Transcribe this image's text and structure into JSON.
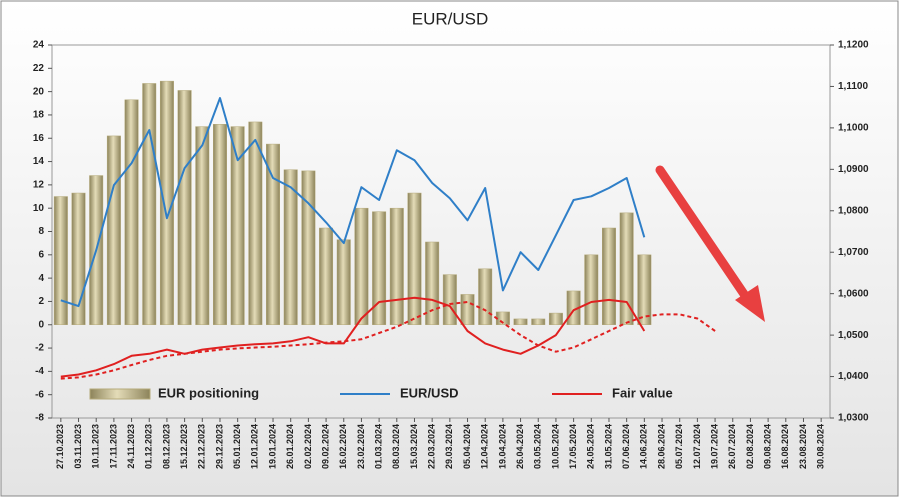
{
  "chart_data": {
    "type": "bar-line",
    "title": "EUR/USD",
    "categories": [
      "27.10.2023",
      "03.11.2023",
      "10.11.2023",
      "17.11.2023",
      "24.11.2023",
      "01.12.2023",
      "08.12.2023",
      "15.12.2023",
      "22.12.2023",
      "29.12.2023",
      "05.01.2024",
      "12.01.2024",
      "19.01.2024",
      "26.01.2024",
      "02.02.2024",
      "09.02.2024",
      "16.02.2024",
      "23.02.2024",
      "01.03.2024",
      "08.03.2024",
      "15.03.2024",
      "22.03.2024",
      "29.03.2024",
      "05.04.2024",
      "12.04.2024",
      "19.04.2024",
      "26.04.2024",
      "03.05.2024",
      "10.05.2024",
      "17.05.2024",
      "24.05.2024",
      "31.05.2024",
      "07.06.2024",
      "14.06.2024",
      "28.06.2024",
      "05.07.2024",
      "12.07.2024",
      "19.07.2024",
      "26.07.2024",
      "02.08.2024",
      "09.08.2024",
      "16.08.2024",
      "23.08.2024",
      "30.08.2024"
    ],
    "series": [
      {
        "name": "EUR positioning",
        "kind": "bar",
        "color": "#b5aa7a",
        "axis": "y",
        "values": [
          11,
          11.3,
          12.8,
          16.2,
          19.3,
          20.7,
          20.9,
          20.1,
          17,
          17.2,
          17,
          17.4,
          15.5,
          13.3,
          13.2,
          8.3,
          7.3,
          10,
          9.7,
          10,
          11.3,
          7.1,
          4.3,
          2.6,
          4.8,
          1.1,
          0.5,
          0.5,
          1,
          2.9,
          6,
          8.3,
          9.6,
          6,
          null,
          null,
          null,
          null,
          null,
          null,
          null,
          null,
          null,
          null
        ]
      },
      {
        "name": "EUR/USD",
        "kind": "line",
        "color": "#2f7fc8",
        "axis": "y2",
        "values": [
          1.0584,
          1.057,
          1.0705,
          1.0862,
          1.0915,
          1.0995,
          1.0782,
          1.0903,
          1.0958,
          1.1072,
          1.0922,
          1.0971,
          1.0879,
          1.0857,
          1.0818,
          1.0772,
          1.0722,
          1.0857,
          1.0826,
          1.0946,
          1.0922,
          1.0867,
          1.083,
          1.0777,
          1.0855,
          1.0608,
          1.07,
          1.0657,
          1.0741,
          1.0826,
          1.0835,
          1.0855,
          1.0879,
          1.0736,
          null,
          null,
          null,
          null,
          null,
          null,
          null,
          null,
          null,
          null
        ]
      },
      {
        "name": "Fair value",
        "kind": "line",
        "color": "#e02020",
        "axis": "y2",
        "values": [
          1.04,
          1.0405,
          1.0415,
          1.043,
          1.045,
          1.0455,
          1.0465,
          1.0455,
          1.0465,
          1.047,
          1.0475,
          1.0478,
          1.048,
          1.0485,
          1.0495,
          1.048,
          1.048,
          1.054,
          1.058,
          1.0585,
          1.059,
          1.0585,
          1.057,
          1.051,
          1.048,
          1.0465,
          1.0455,
          1.0475,
          1.05,
          1.056,
          1.058,
          1.0585,
          1.058,
          1.051,
          null,
          null,
          null,
          null,
          null,
          null,
          null,
          null,
          null,
          null
        ]
      },
      {
        "kind": "line",
        "dashed": true,
        "color": "#e02020",
        "axis": "y2",
        "values": [
          1.0395,
          1.0398,
          1.0405,
          1.0415,
          1.0428,
          1.044,
          1.045,
          1.0455,
          1.046,
          1.0465,
          1.0468,
          1.047,
          1.0472,
          1.0475,
          1.0478,
          1.0482,
          1.0485,
          1.049,
          1.0505,
          1.052,
          1.054,
          1.056,
          1.0575,
          1.058,
          1.056,
          1.053,
          1.05,
          1.0475,
          1.046,
          1.047,
          1.049,
          1.051,
          1.053,
          1.0545,
          1.055,
          1.055,
          1.054,
          1.051,
          null,
          null,
          null,
          null,
          null,
          null
        ]
      }
    ],
    "ylim": [
      -8,
      24
    ],
    "yticks": [
      -8,
      -6,
      -4,
      -2,
      0,
      2,
      4,
      6,
      8,
      10,
      12,
      14,
      16,
      18,
      20,
      22,
      24
    ],
    "y2lim": [
      1.03,
      1.12
    ],
    "y2ticks": [
      {
        "value": 1.03,
        "label": "1,0300"
      },
      {
        "value": 1.04,
        "label": "1,0400"
      },
      {
        "value": 1.05,
        "label": "1,0500"
      },
      {
        "value": 1.06,
        "label": "1,0600"
      },
      {
        "value": 1.07,
        "label": "1,0700"
      },
      {
        "value": 1.08,
        "label": "1,0800"
      },
      {
        "value": 1.09,
        "label": "1,0900"
      },
      {
        "value": 1.1,
        "label": "1,1000"
      },
      {
        "value": 1.11,
        "label": "1,1100"
      },
      {
        "value": 1.12,
        "label": "1,1200"
      }
    ],
    "legend": "bottom-inside"
  }
}
